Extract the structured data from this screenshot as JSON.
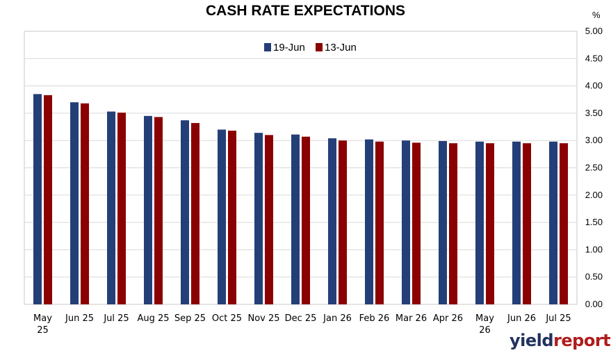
{
  "chart_data": {
    "type": "bar",
    "title": "CASH RATE EXPECTATIONS",
    "y_unit": "%",
    "ylim": [
      0,
      5
    ],
    "y_ticks": [
      "0.00",
      "0.50",
      "1.00",
      "1.50",
      "2.00",
      "2.50",
      "3.00",
      "3.50",
      "4.00",
      "4.50",
      "5.00"
    ],
    "y_axis_position": "right",
    "grid": true,
    "legend_position": "top-center",
    "categories": [
      [
        "May",
        "25"
      ],
      [
        "Jun 25"
      ],
      [
        "Jul 25"
      ],
      [
        "Aug 25"
      ],
      [
        "Sep 25"
      ],
      [
        "Oct 25"
      ],
      [
        "Nov 25"
      ],
      [
        "Dec 25"
      ],
      [
        "Jan 26"
      ],
      [
        "Feb 26"
      ],
      [
        "Mar 26"
      ],
      [
        "Apr 26"
      ],
      [
        "May",
        "26"
      ],
      [
        "Jun 26"
      ],
      [
        "Jul 25"
      ]
    ],
    "series": [
      {
        "name": "19-Jun",
        "color": "#243f78",
        "values": [
          3.85,
          3.7,
          3.53,
          3.45,
          3.37,
          3.2,
          3.14,
          3.11,
          3.04,
          3.02,
          3.0,
          2.99,
          2.98,
          2.98,
          2.98
        ]
      },
      {
        "name": "13-Jun",
        "color": "#8b0000",
        "values": [
          3.83,
          3.68,
          3.51,
          3.43,
          3.32,
          3.18,
          3.1,
          3.07,
          3.0,
          2.98,
          2.96,
          2.95,
          2.95,
          2.95,
          2.95
        ]
      }
    ]
  },
  "branding": {
    "logo_prefix": "yield",
    "logo_suffix": "report",
    "logo_accent_color": "#b01c1c"
  }
}
